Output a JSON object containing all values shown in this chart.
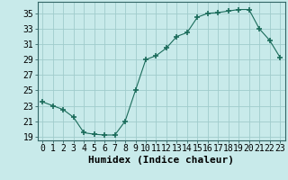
{
  "x": [
    0,
    1,
    2,
    3,
    4,
    5,
    6,
    7,
    8,
    9,
    10,
    11,
    12,
    13,
    14,
    15,
    16,
    17,
    18,
    19,
    20,
    21,
    22,
    23
  ],
  "y": [
    23.5,
    23.0,
    22.5,
    21.5,
    19.5,
    19.3,
    19.2,
    19.2,
    21.0,
    25.0,
    29.0,
    29.5,
    30.5,
    32.0,
    32.5,
    34.5,
    35.0,
    35.1,
    35.3,
    35.5,
    35.5,
    33.0,
    31.5,
    29.3
  ],
  "line_color": "#1a6b5a",
  "marker": "+",
  "marker_size": 4,
  "marker_lw": 1.2,
  "bg_color": "#c8eaea",
  "grid_color": "#a0cccc",
  "xlabel": "Humidex (Indice chaleur)",
  "ylim": [
    18.5,
    36.5
  ],
  "yticks": [
    19,
    21,
    23,
    25,
    27,
    29,
    31,
    33,
    35
  ],
  "xticks": [
    0,
    1,
    2,
    3,
    4,
    5,
    6,
    7,
    8,
    9,
    10,
    11,
    12,
    13,
    14,
    15,
    16,
    17,
    18,
    19,
    20,
    21,
    22,
    23
  ],
  "xlabel_fontsize": 8,
  "tick_fontsize": 7,
  "line_width": 0.8
}
